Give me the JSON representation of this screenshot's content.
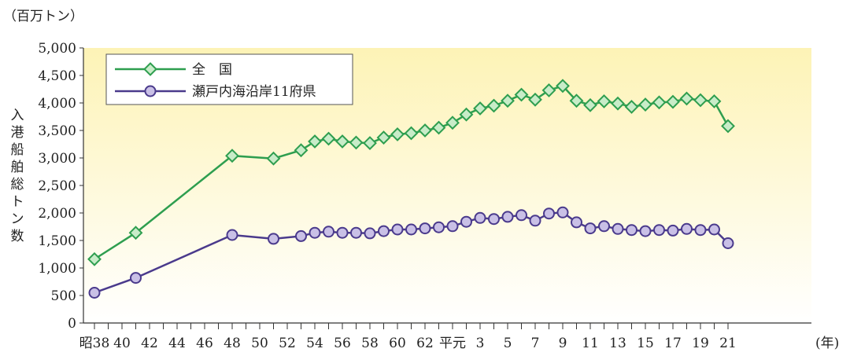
{
  "chart_data": {
    "type": "line",
    "title": "",
    "y_unit_label": "（百万トン）",
    "ylabel": "入港船舶総トン数",
    "x_unit_label": "(年)",
    "ylim": [
      0,
      5000
    ],
    "yticks": [
      0,
      500,
      1000,
      1500,
      2000,
      2500,
      3000,
      3500,
      4000,
      4500,
      5000
    ],
    "ytick_labels": [
      "0",
      "500",
      "1,000",
      "1,500",
      "2,000",
      "2,500",
      "3,000",
      "3,500",
      "4,000",
      "4,500",
      "5,000"
    ],
    "x_ticks": [
      {
        "year": 1963,
        "label": "昭38"
      },
      {
        "year": 1967,
        "label": "42"
      },
      {
        "year": 1969,
        "label": "44"
      },
      {
        "year": 1971,
        "label": "46"
      },
      {
        "year": 1973,
        "label": "48"
      },
      {
        "year": 1975,
        "label": "50"
      },
      {
        "year": 1977,
        "label": "52"
      },
      {
        "year": 1979,
        "label": "54"
      },
      {
        "year": 1981,
        "label": "56"
      },
      {
        "year": 1983,
        "label": "58"
      },
      {
        "year": 1985,
        "label": "60"
      },
      {
        "year": 1987,
        "label": "62"
      },
      {
        "year": 1989,
        "label": "平元"
      },
      {
        "year": 1991,
        "label": "3"
      },
      {
        "year": 1993,
        "label": "5"
      },
      {
        "year": 1995,
        "label": "7"
      },
      {
        "year": 1997,
        "label": "9"
      },
      {
        "year": 1999,
        "label": "11"
      },
      {
        "year": 2001,
        "label": "13"
      },
      {
        "year": 2003,
        "label": "15"
      },
      {
        "year": 2005,
        "label": "17"
      },
      {
        "year": 2007,
        "label": "19"
      },
      {
        "year": 2009,
        "label": "21"
      }
    ],
    "extra_x_labels": [
      {
        "year": 1965,
        "label": "40"
      }
    ],
    "legend_position": "top-left",
    "grid": false,
    "colors": {
      "background_top": "#fdf3b6",
      "background_bottom": "#ffffff",
      "national": "#2e9e4f",
      "national_marker_fill": "#c8ecc8",
      "setouchi": "#4a3a8c",
      "setouchi_marker_fill": "#c9c0e6"
    },
    "series": [
      {
        "name": "全　国",
        "marker": "diamond",
        "x": [
          1963,
          1966,
          1973,
          1976,
          1978,
          1979,
          1980,
          1981,
          1982,
          1983,
          1984,
          1985,
          1986,
          1987,
          1988,
          1989,
          1990,
          1991,
          1992,
          1993,
          1994,
          1995,
          1996,
          1997,
          1998,
          1999,
          2000,
          2001,
          2002,
          2003,
          2004,
          2005,
          2006,
          2007,
          2008,
          2009
        ],
        "y": [
          1160,
          1640,
          3040,
          2990,
          3140,
          3300,
          3350,
          3300,
          3280,
          3270,
          3370,
          3430,
          3450,
          3500,
          3550,
          3640,
          3790,
          3900,
          3950,
          4040,
          4150,
          4060,
          4230,
          4310,
          4040,
          3960,
          4030,
          3990,
          3930,
          3970,
          4010,
          4020,
          4080,
          4050,
          4030,
          3580
        ]
      },
      {
        "name": "瀬戸内海沿岸11府県",
        "marker": "circle",
        "x": [
          1963,
          1966,
          1973,
          1976,
          1978,
          1979,
          1980,
          1981,
          1982,
          1983,
          1984,
          1985,
          1986,
          1987,
          1988,
          1989,
          1990,
          1991,
          1992,
          1993,
          1994,
          1995,
          1996,
          1997,
          1998,
          1999,
          2000,
          2001,
          2002,
          2003,
          2004,
          2005,
          2006,
          2007,
          2008,
          2009
        ],
        "y": [
          550,
          820,
          1600,
          1530,
          1580,
          1640,
          1660,
          1640,
          1640,
          1630,
          1670,
          1700,
          1700,
          1720,
          1740,
          1760,
          1840,
          1910,
          1890,
          1930,
          1960,
          1860,
          1990,
          2010,
          1830,
          1720,
          1760,
          1710,
          1690,
          1670,
          1690,
          1680,
          1710,
          1690,
          1700,
          1450
        ]
      }
    ]
  }
}
